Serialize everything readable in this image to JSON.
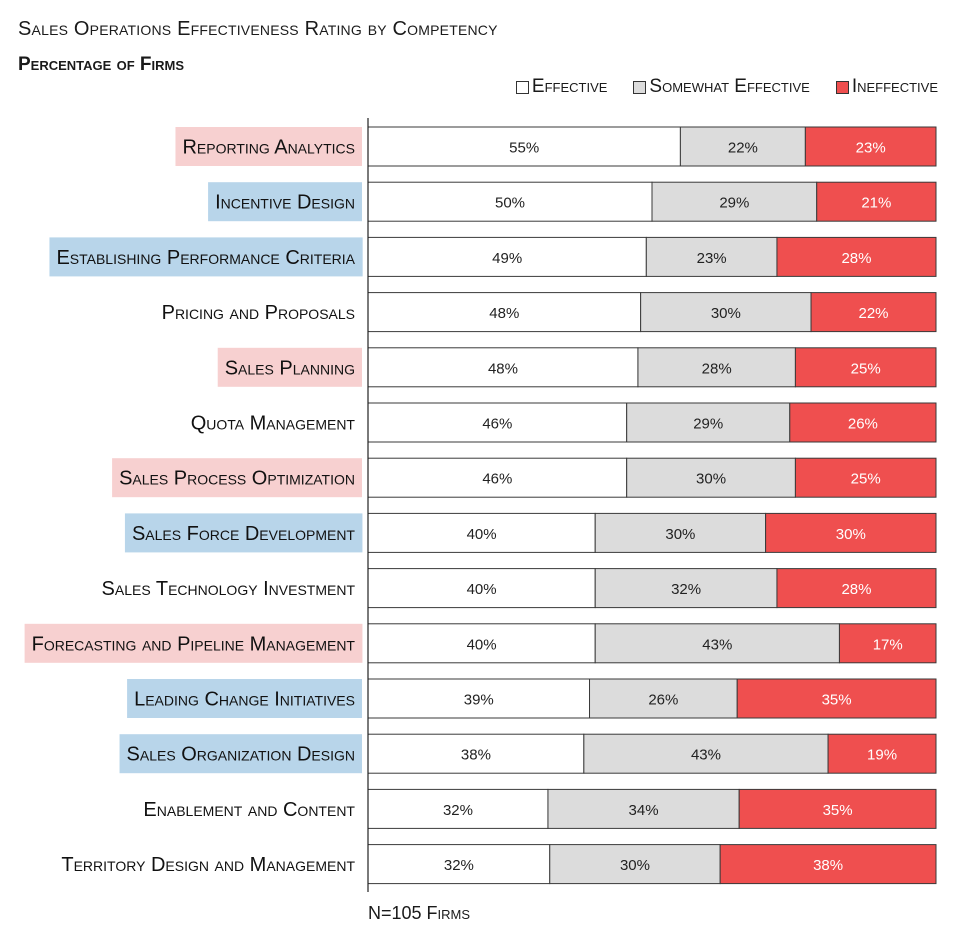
{
  "title": "Sales Operations Effectiveness Rating by Competency",
  "subtitle": "Percentage of Firms",
  "note": "N=105 Firms",
  "legend": [
    {
      "label": "Effective",
      "color": "#ffffff"
    },
    {
      "label": "Somewhat Effective",
      "color": "#dcdcdc"
    },
    {
      "label": "Ineffective",
      "color": "#ef4f4f"
    }
  ],
  "highlight_colors": {
    "pink": "#f7d0d0",
    "blue": "#b8d5ea"
  },
  "chart_data": {
    "type": "bar",
    "orientation": "horizontal",
    "stacked": true,
    "categories": [
      "Reporting Analytics",
      "Incentive Design",
      "Establishing Performance Criteria",
      "Pricing and Proposals",
      "Sales Planning",
      "Quota Management",
      "Sales Process Optimization",
      "Sales Force Development",
      "Sales Technology Investment",
      "Forecasting and Pipeline Management",
      "Leading Change Initiatives",
      "Sales Organization Design",
      "Enablement and Content",
      "Territory Design and Management"
    ],
    "category_highlight": [
      "pink",
      "blue",
      "blue",
      "none",
      "pink",
      "none",
      "pink",
      "blue",
      "none",
      "pink",
      "blue",
      "blue",
      "none",
      "none"
    ],
    "series": [
      {
        "name": "Effective",
        "color": "#ffffff",
        "values": [
          55,
          50,
          49,
          48,
          48,
          46,
          46,
          40,
          40,
          40,
          39,
          38,
          32,
          32
        ]
      },
      {
        "name": "Somewhat Effective",
        "color": "#dcdcdc",
        "values": [
          22,
          29,
          23,
          30,
          28,
          29,
          30,
          30,
          32,
          43,
          26,
          43,
          34,
          30
        ]
      },
      {
        "name": "Ineffective",
        "color": "#ef4f4f",
        "values": [
          23,
          21,
          28,
          22,
          25,
          26,
          25,
          30,
          28,
          17,
          35,
          19,
          35,
          38
        ]
      }
    ],
    "value_suffix": "%",
    "legend_position": "top-right",
    "grid": false
  }
}
